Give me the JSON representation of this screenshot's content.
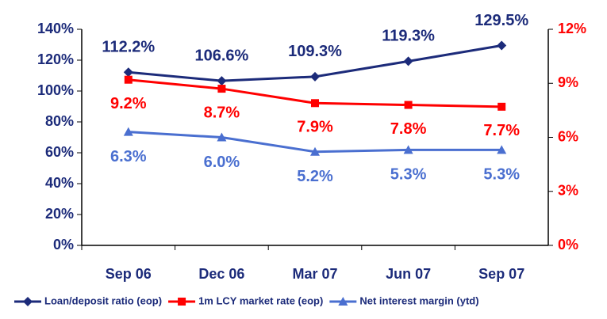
{
  "chart_data": {
    "type": "line",
    "categories": [
      "Sep 06",
      "Dec 06",
      "Mar 07",
      "Jun 07",
      "Sep 07"
    ],
    "series": [
      {
        "name": "Loan/deposit ratio (eop)",
        "color": "#1c2b7a",
        "marker": "diamond",
        "values": [
          112.2,
          106.6,
          109.3,
          119.3,
          129.5
        ],
        "value_labels": [
          "112.2%",
          "106.6%",
          "109.3%",
          "119.3%",
          "129.5%"
        ]
      },
      {
        "name": "1m LCY market rate (eop)",
        "color": "#ff0000",
        "marker": "square",
        "axis": "y2",
        "values": [
          9.2,
          8.7,
          7.9,
          7.8,
          7.7
        ],
        "value_labels": [
          "9.2%",
          "8.7%",
          "7.9%",
          "7.8%",
          "7.7%"
        ]
      },
      {
        "name": "Net interest margin (ytd)",
        "color": "#4a6fd0",
        "marker": "triangle",
        "axis": "y2",
        "values": [
          6.3,
          6.0,
          5.2,
          5.3,
          5.3
        ],
        "value_labels": [
          "6.3%",
          "6.0%",
          "5.2%",
          "5.3%",
          "5.3%"
        ]
      }
    ],
    "ylim": [
      0,
      140
    ],
    "yticks": [
      {
        "value": 0,
        "label": "0%"
      },
      {
        "value": 20,
        "label": "20%"
      },
      {
        "value": 40,
        "label": "40%"
      },
      {
        "value": 60,
        "label": "60%"
      },
      {
        "value": 80,
        "label": "80%"
      },
      {
        "value": 100,
        "label": "100%"
      },
      {
        "value": 120,
        "label": "120%"
      },
      {
        "value": 140,
        "label": "140%"
      }
    ],
    "y2lim": [
      0,
      12
    ],
    "y2ticks": [
      {
        "value": 0,
        "label": "0%"
      },
      {
        "value": 3,
        "label": "3%"
      },
      {
        "value": 6,
        "label": "6%"
      },
      {
        "value": 9,
        "label": "9%"
      },
      {
        "value": 12,
        "label": "12%"
      }
    ],
    "legend": "bottom"
  }
}
